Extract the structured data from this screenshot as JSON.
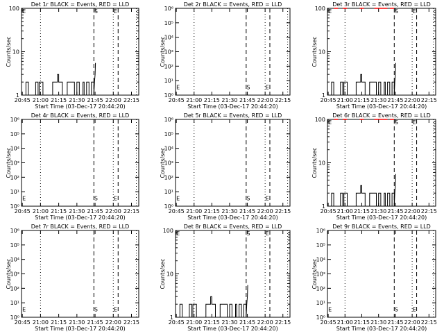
{
  "figure": {
    "xlabel": "Start Time (03-Dec-17 20:44:20)",
    "ylabel": "Counts/sec",
    "xtick_labels": [
      "20:45",
      "21:00",
      "21:15",
      "21:30",
      "21:45",
      "22:00",
      "22:15"
    ],
    "xtick_minutes": [
      45,
      60,
      75,
      90,
      105,
      120,
      135
    ],
    "x_range_minutes": [
      44.33,
      141
    ],
    "marker_minutes": {
      "dotted": [
        60,
        120,
        139
      ],
      "dashed": [
        104,
        124
      ]
    },
    "colors": {
      "events": "#000000",
      "lld": "#ff0000"
    }
  },
  "chart_data": [
    {
      "type": "line",
      "title": "Det 1r BLACK = Events, RED = LLD",
      "yscale": "log",
      "ylim": [
        1,
        100
      ],
      "ytick_labels": [
        "1",
        "10",
        "100"
      ],
      "ytick_values": [
        1,
        10,
        100
      ],
      "markers": [
        {
          "text": "E",
          "x": 45,
          "y": 90
        },
        {
          "text": "S",
          "x": 104.3,
          "y": 90
        },
        {
          "text": "E",
          "x": 120.3,
          "y": 90
        }
      ],
      "series": [
        {
          "key": "events",
          "x": [
            45,
            47,
            48,
            48,
            50,
            50,
            55,
            56,
            56,
            58,
            58,
            59,
            59,
            62,
            62,
            70,
            70,
            74,
            74,
            75,
            75,
            78,
            78,
            82,
            82,
            88,
            88,
            90,
            90,
            92,
            92,
            95,
            95,
            96,
            96,
            98,
            98,
            100,
            100,
            102,
            102,
            104,
            104,
            104.5,
            105,
            105.3
          ],
          "y": [
            1,
            1,
            1,
            2,
            2,
            1,
            1,
            1,
            2,
            2,
            1,
            1,
            2,
            2,
            1,
            1,
            2,
            2,
            3,
            3,
            2,
            2,
            1,
            1,
            2,
            2,
            1,
            1,
            2,
            2,
            1,
            1,
            2,
            2,
            1,
            1,
            2,
            2,
            1,
            1,
            2,
            2,
            1,
            2,
            3,
            5.5
          ]
        },
        {
          "key": "lld",
          "x": [],
          "y": []
        }
      ]
    },
    {
      "type": "line",
      "title": "Det 2r BLACK = Events, RED = LLD",
      "yscale": "log",
      "ylim": [
        1,
        1000000
      ],
      "ytick_labels": [
        "10⁰",
        "10¹",
        "10²",
        "10³",
        "10⁴",
        "10⁵",
        "10⁶"
      ],
      "ytick_values": [
        1,
        10,
        100,
        1000,
        10000,
        100000,
        1000000
      ],
      "markers": [
        {
          "text": "E",
          "x": 45,
          "y": 4
        },
        {
          "text": "S",
          "x": 104.3,
          "y": 4
        },
        {
          "text": "E",
          "x": 120.3,
          "y": 4
        }
      ],
      "series": [
        {
          "key": "events",
          "x": [],
          "y": []
        },
        {
          "key": "lld",
          "x": [],
          "y": []
        }
      ]
    },
    {
      "type": "line",
      "title": "Det 3r BLACK = Events, RED = LLD",
      "yscale": "log",
      "ylim": [
        1,
        100
      ],
      "ytick_labels": [
        "1",
        "10",
        "100"
      ],
      "ytick_values": [
        1,
        10,
        100
      ],
      "markers": [
        {
          "text": "E",
          "x": 45,
          "y": 90
        },
        {
          "text": "S",
          "x": 104.3,
          "y": 90
        },
        {
          "text": "E",
          "x": 120.3,
          "y": 90
        }
      ],
      "series": [
        {
          "key": "events",
          "x": [
            45,
            47,
            48,
            48,
            50,
            50,
            55,
            56,
            56,
            58,
            58,
            59,
            59,
            62,
            62,
            70,
            70,
            74,
            74,
            75,
            75,
            78,
            78,
            82,
            82,
            88,
            88,
            90,
            90,
            92,
            92,
            95,
            95,
            96,
            96,
            98,
            98,
            100,
            100,
            102,
            102,
            104,
            104,
            104.5,
            105,
            105.3
          ],
          "y": [
            1,
            1,
            1,
            2,
            2,
            1,
            1,
            1,
            2,
            2,
            1,
            1,
            2,
            2,
            1,
            1,
            2,
            2,
            3,
            3,
            2,
            2,
            1,
            1,
            2,
            2,
            1,
            1,
            2,
            2,
            1,
            1,
            2,
            2,
            1,
            1,
            2,
            2,
            1,
            1,
            2,
            2,
            1,
            2,
            3,
            5.5
          ]
        },
        {
          "key": "lld",
          "x": [
            52,
            60,
            75,
            88,
            92,
            96,
            102
          ],
          "y": [
            100,
            100,
            100,
            100,
            100,
            100,
            100
          ]
        }
      ]
    },
    {
      "type": "line",
      "title": "Det 4r BLACK = Events, RED = LLD",
      "yscale": "log",
      "ylim": [
        1,
        1000000
      ],
      "ytick_labels": [
        "10⁰",
        "10¹",
        "10²",
        "10³",
        "10⁴",
        "10⁵",
        "10⁶"
      ],
      "ytick_values": [
        1,
        10,
        100,
        1000,
        10000,
        100000,
        1000000
      ],
      "markers": [
        {
          "text": "E",
          "x": 45,
          "y": 4
        },
        {
          "text": "S",
          "x": 104.3,
          "y": 4
        },
        {
          "text": "E",
          "x": 120.3,
          "y": 4
        }
      ],
      "series": [
        {
          "key": "events",
          "x": [],
          "y": []
        },
        {
          "key": "lld",
          "x": [],
          "y": []
        }
      ]
    },
    {
      "type": "line",
      "title": "Det 5r BLACK = Events, RED = LLD",
      "yscale": "log",
      "ylim": [
        1,
        1000000
      ],
      "ytick_labels": [
        "10⁰",
        "10¹",
        "10²",
        "10³",
        "10⁴",
        "10⁵",
        "10⁶"
      ],
      "ytick_values": [
        1,
        10,
        100,
        1000,
        10000,
        100000,
        1000000
      ],
      "markers": [
        {
          "text": "E",
          "x": 45,
          "y": 4
        },
        {
          "text": "S",
          "x": 104.3,
          "y": 4
        },
        {
          "text": "E",
          "x": 120.3,
          "y": 4
        }
      ],
      "series": [
        {
          "key": "events",
          "x": [],
          "y": []
        },
        {
          "key": "lld",
          "x": [],
          "y": []
        }
      ]
    },
    {
      "type": "line",
      "title": "Det 6r BLACK = Events, RED = LLD",
      "yscale": "log",
      "ylim": [
        1,
        100
      ],
      "ytick_labels": [
        "1",
        "10",
        "100"
      ],
      "ytick_values": [
        1,
        10,
        100
      ],
      "markers": [
        {
          "text": "E",
          "x": 45,
          "y": 90
        },
        {
          "text": "S",
          "x": 104.3,
          "y": 90
        },
        {
          "text": "E",
          "x": 120.3,
          "y": 90
        }
      ],
      "series": [
        {
          "key": "events",
          "x": [
            45,
            47,
            48,
            48,
            50,
            50,
            55,
            56,
            56,
            58,
            58,
            59,
            59,
            62,
            62,
            70,
            70,
            74,
            74,
            75,
            75,
            78,
            78,
            82,
            82,
            88,
            88,
            90,
            90,
            92,
            92,
            95,
            95,
            96,
            96,
            98,
            98,
            100,
            100,
            102,
            102,
            104,
            104,
            104.5,
            105,
            105.3
          ],
          "y": [
            1,
            1,
            1,
            2,
            2,
            1,
            1,
            1,
            2,
            2,
            1,
            1,
            2,
            2,
            1,
            1,
            2,
            2,
            3,
            3,
            2,
            2,
            1,
            1,
            2,
            2,
            1,
            1,
            2,
            2,
            1,
            1,
            2,
            2,
            1,
            1,
            2,
            2,
            1,
            1,
            2,
            2,
            1,
            2,
            3,
            5.5
          ]
        },
        {
          "key": "lld",
          "x": [
            52,
            60,
            75,
            88,
            92,
            96,
            102
          ],
          "y": [
            100,
            100,
            100,
            100,
            100,
            100,
            100
          ]
        }
      ]
    },
    {
      "type": "line",
      "title": "Det 7r BLACK = Events, RED = LLD",
      "yscale": "log",
      "ylim": [
        1,
        1000000
      ],
      "ytick_labels": [
        "10⁰",
        "10¹",
        "10²",
        "10³",
        "10⁴",
        "10⁵",
        "10⁶"
      ],
      "ytick_values": [
        1,
        10,
        100,
        1000,
        10000,
        100000,
        1000000
      ],
      "markers": [
        {
          "text": "E",
          "x": 45,
          "y": 4
        },
        {
          "text": "S",
          "x": 104.3,
          "y": 4
        },
        {
          "text": "E",
          "x": 120.3,
          "y": 4
        }
      ],
      "series": [
        {
          "key": "events",
          "x": [],
          "y": []
        },
        {
          "key": "lld",
          "x": [],
          "y": []
        }
      ]
    },
    {
      "type": "line",
      "title": "Det 8r BLACK = Events, RED = LLD",
      "yscale": "log",
      "ylim": [
        1,
        100
      ],
      "ytick_labels": [
        "1",
        "10",
        "100"
      ],
      "ytick_values": [
        1,
        10,
        100
      ],
      "markers": [
        {
          "text": "E",
          "x": 45,
          "y": 90
        },
        {
          "text": "S",
          "x": 104.3,
          "y": 90
        },
        {
          "text": "E",
          "x": 120.3,
          "y": 90
        }
      ],
      "series": [
        {
          "key": "events",
          "x": [
            45,
            47,
            48,
            48,
            50,
            50,
            55,
            56,
            56,
            58,
            58,
            59,
            59,
            62,
            62,
            70,
            70,
            74,
            74,
            75,
            75,
            78,
            78,
            82,
            82,
            88,
            88,
            90,
            90,
            92,
            92,
            95,
            95,
            96,
            96,
            98,
            98,
            100,
            100,
            102,
            102,
            104,
            104,
            104.5,
            105,
            105.3
          ],
          "y": [
            1,
            1,
            1,
            2,
            2,
            1,
            1,
            1,
            2,
            2,
            1,
            1,
            2,
            2,
            1,
            1,
            2,
            2,
            3,
            3,
            2,
            2,
            1,
            1,
            2,
            2,
            1,
            1,
            2,
            2,
            1,
            1,
            2,
            2,
            1,
            1,
            2,
            2,
            1,
            1,
            2,
            2,
            1,
            2,
            3,
            5.5
          ]
        },
        {
          "key": "lld",
          "x": [],
          "y": []
        }
      ]
    },
    {
      "type": "line",
      "title": "Det 9r BLACK = Events, RED = LLD",
      "yscale": "log",
      "ylim": [
        1,
        1000000
      ],
      "ytick_labels": [
        "10⁰",
        "10¹",
        "10²",
        "10³",
        "10⁴",
        "10⁵",
        "10⁶"
      ],
      "ytick_values": [
        1,
        10,
        100,
        1000,
        10000,
        100000,
        1000000
      ],
      "markers": [
        {
          "text": "E",
          "x": 45,
          "y": 4
        },
        {
          "text": "S",
          "x": 104.3,
          "y": 4
        },
        {
          "text": "E",
          "x": 120.3,
          "y": 4
        }
      ],
      "series": [
        {
          "key": "events",
          "x": [],
          "y": []
        },
        {
          "key": "lld",
          "x": [],
          "y": []
        }
      ]
    }
  ]
}
